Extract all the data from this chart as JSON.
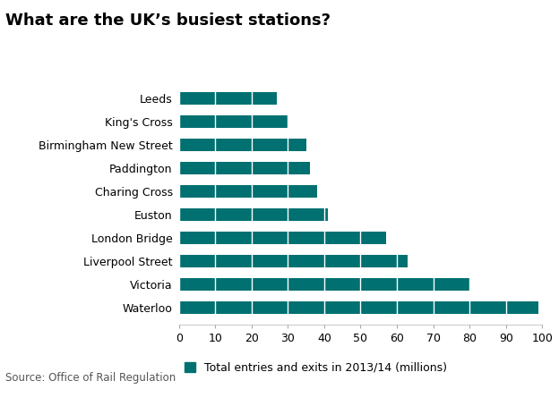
{
  "title": "What are the UK’s busiest stations?",
  "stations": [
    "Leeds",
    "King's Cross",
    "Birmingham New Street",
    "Paddington",
    "Charing Cross",
    "Euston",
    "London Bridge",
    "Liverpool Street",
    "Victoria",
    "Waterloo"
  ],
  "values": [
    27,
    30,
    35,
    36,
    38,
    41,
    57,
    63,
    80,
    99
  ],
  "bar_color": "#007070",
  "legend_label": "Total entries and exits in 2013/14 (millions)",
  "source_text": "Source: Office of Rail Regulation",
  "xlim": [
    0,
    100
  ],
  "xticks": [
    0,
    10,
    20,
    30,
    40,
    50,
    60,
    70,
    80,
    90,
    100
  ],
  "background_color": "#ffffff",
  "title_fontsize": 13,
  "tick_fontsize": 9,
  "legend_fontsize": 9,
  "source_fontsize": 8.5,
  "bar_height": 0.55
}
